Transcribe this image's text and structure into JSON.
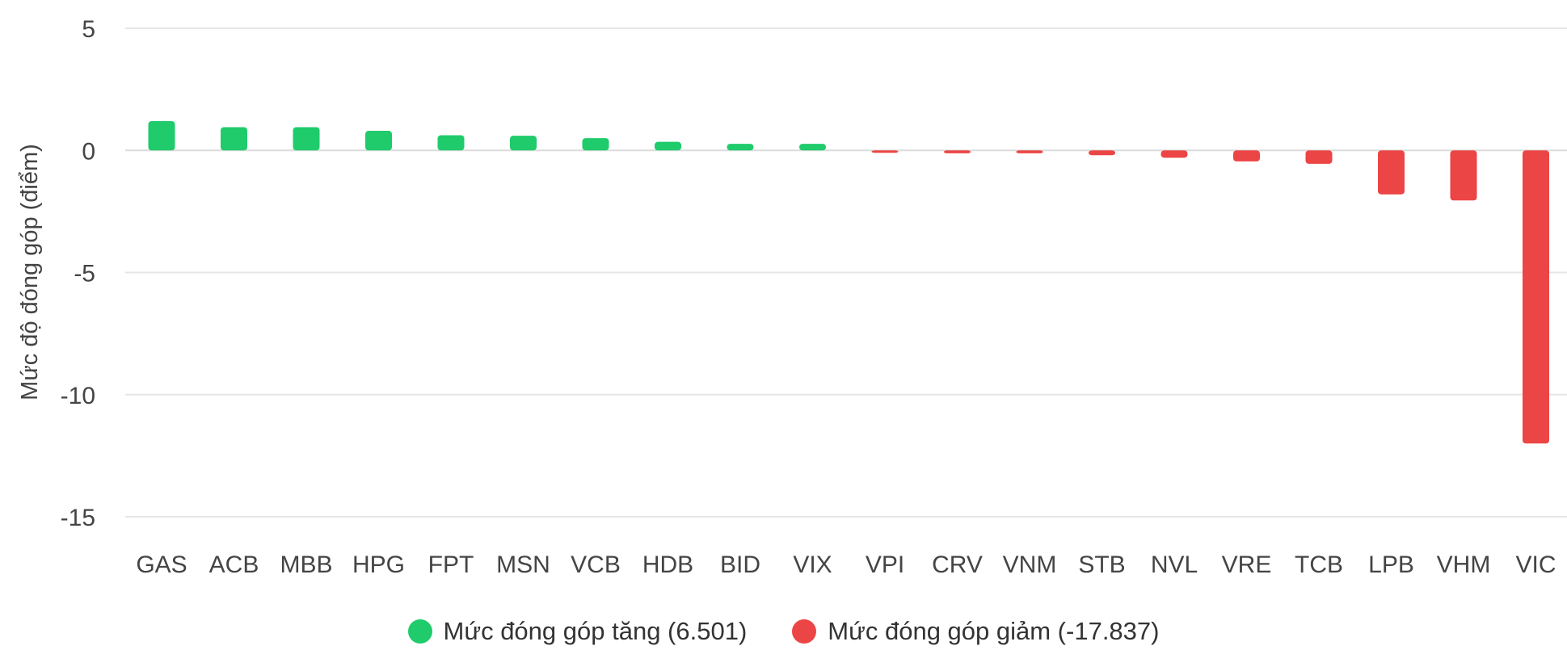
{
  "chart_data": {
    "type": "bar",
    "ylabel": "Mức độ đóng góp (điểm)",
    "ylim": [
      -15,
      5
    ],
    "yticks": [
      5,
      0,
      -5,
      -10,
      -15
    ],
    "categories": [
      "GAS",
      "ACB",
      "MBB",
      "HPG",
      "FPT",
      "MSN",
      "VCB",
      "HDB",
      "BID",
      "VIX",
      "VPI",
      "CRV",
      "VNM",
      "STB",
      "NVL",
      "VRE",
      "TCB",
      "LPB",
      "VHM",
      "VIC"
    ],
    "values": [
      1.2,
      0.95,
      0.95,
      0.8,
      0.62,
      0.6,
      0.5,
      0.35,
      0.27,
      0.27,
      -0.05,
      -0.12,
      -0.12,
      -0.2,
      -0.3,
      -0.45,
      -0.55,
      -1.8,
      -2.05,
      -12.0
    ],
    "grid": true,
    "legend_position": "bottom",
    "series": [
      {
        "name": "Mức đóng góp tăng (6.501)",
        "color": "#1fcb6b"
      },
      {
        "name": "Mức đóng góp giảm (-17.837)",
        "color": "#ec4545"
      }
    ]
  }
}
